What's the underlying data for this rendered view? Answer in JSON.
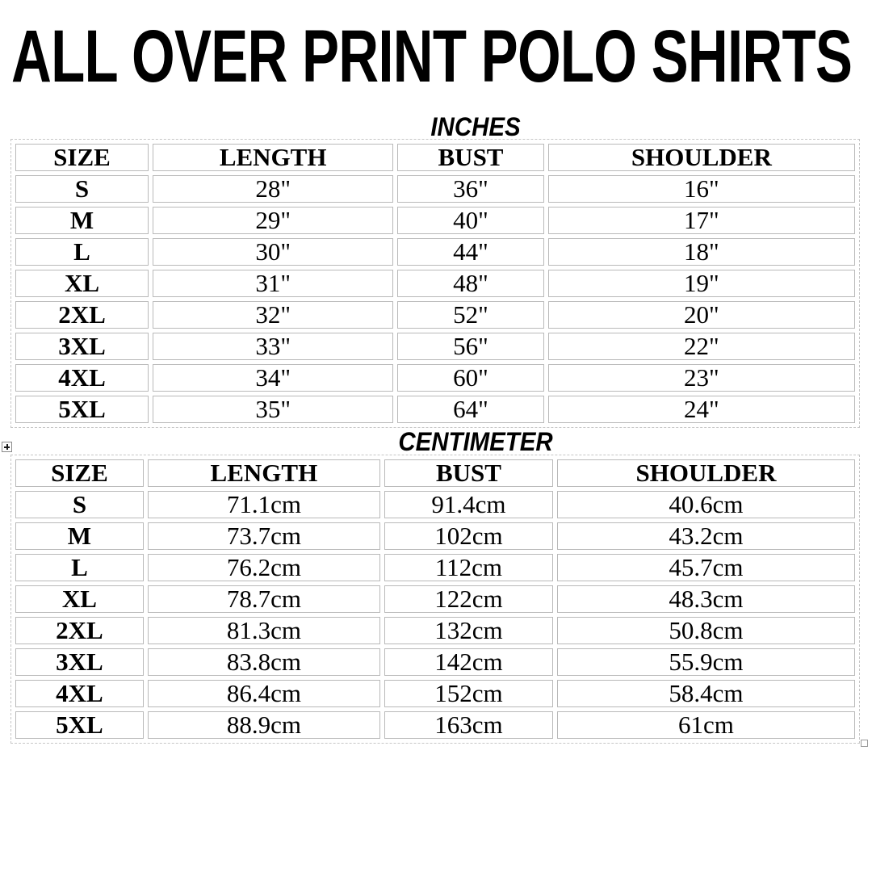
{
  "page_title": "ALL OVER PRINT POLO SHIRTS",
  "tables": [
    {
      "section_label": "INCHES",
      "headers": [
        "SIZE",
        "LENGTH",
        "BUST",
        "SHOULDER"
      ],
      "rows": [
        [
          "S",
          "28\"",
          "36\"",
          "16\""
        ],
        [
          "M",
          "29\"",
          "40\"",
          "17\""
        ],
        [
          "L",
          "30\"",
          "44\"",
          "18\""
        ],
        [
          "XL",
          "31\"",
          "48\"",
          "19\""
        ],
        [
          "2XL",
          "32\"",
          "52\"",
          "20\""
        ],
        [
          "3XL",
          "33\"",
          "56\"",
          "22\""
        ],
        [
          "4XL",
          "34\"",
          "60\"",
          "23\""
        ],
        [
          "5XL",
          "35\"",
          "64\"",
          "24\""
        ]
      ]
    },
    {
      "section_label": "CENTIMETER",
      "headers": [
        "SIZE",
        "LENGTH",
        "BUST",
        "SHOULDER"
      ],
      "rows": [
        [
          "S",
          "71.1cm",
          "91.4cm",
          "40.6cm"
        ],
        [
          "M",
          "73.7cm",
          "102cm",
          "43.2cm"
        ],
        [
          "L",
          "76.2cm",
          "112cm",
          "45.7cm"
        ],
        [
          "XL",
          "78.7cm",
          "122cm",
          "48.3cm"
        ],
        [
          "2XL",
          "81.3cm",
          "132cm",
          "50.8cm"
        ],
        [
          "3XL",
          "83.8cm",
          "142cm",
          "55.9cm"
        ],
        [
          "4XL",
          "86.4cm",
          "152cm",
          "58.4cm"
        ],
        [
          "5XL",
          "88.9cm",
          "163cm",
          "61cm"
        ]
      ]
    }
  ],
  "icons": {
    "move_handle": "table-move-cross-icon",
    "resize_handle": "table-resize-square-icon"
  },
  "colors": {
    "text": "#000000",
    "cell_border": "#b9b9b9",
    "table_outline": "#c6c6c6",
    "background": "#ffffff"
  }
}
